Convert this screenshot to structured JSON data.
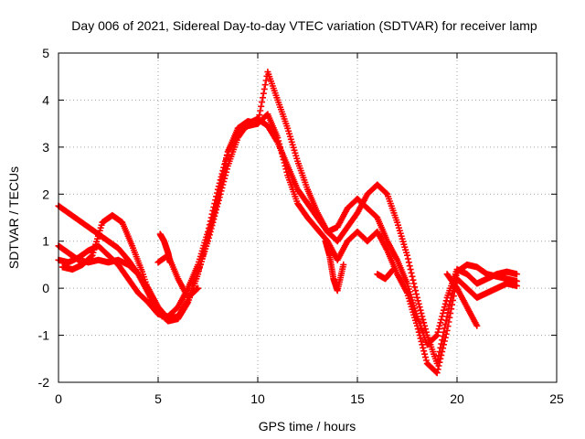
{
  "chart_data": {
    "type": "scatter",
    "title": "Day 006 of 2021, Sidereal Day-to-day VTEC variation (SDTVAR) for receiver lamp",
    "xlabel": "GPS time / hours",
    "ylabel": "SDTVAR / TECUs",
    "xlim": [
      0,
      25
    ],
    "ylim": [
      -2,
      5
    ],
    "xticks": [
      "0",
      "5",
      "10",
      "15",
      "20",
      "25"
    ],
    "yticks": [
      "-2",
      "-1",
      "0",
      "1",
      "2",
      "3",
      "4",
      "5"
    ],
    "grid": true,
    "marker": "+",
    "color": "#ff0000",
    "series": [
      {
        "x": [
          0,
          0.5,
          1.0,
          1.5,
          2.0,
          2.5,
          3.0,
          3.5,
          4.0,
          4.5,
          5.0,
          5.5,
          6.0,
          6.5,
          7.0,
          7.5,
          8.0,
          8.5,
          9.0,
          9.5,
          10.0,
          10.5,
          11.0,
          11.5,
          12.0,
          12.5,
          13.0,
          13.5,
          14.0,
          14.5,
          15.0,
          15.5,
          16.0,
          16.5,
          17.0,
          17.5,
          18.0,
          18.5,
          19.0,
          19.5,
          20.0,
          20.5,
          21.0,
          21.5,
          22.0,
          22.5,
          23.0
        ],
        "y": [
          1.75,
          1.6,
          1.45,
          1.3,
          1.15,
          1.0,
          0.85,
          0.6,
          0.3,
          0.0,
          -0.4,
          -0.65,
          -0.6,
          -0.25,
          0.35,
          1.0,
          1.8,
          2.6,
          3.2,
          3.5,
          3.6,
          3.45,
          3.1,
          2.6,
          2.1,
          1.8,
          1.5,
          1.2,
          1.3,
          1.7,
          1.9,
          1.7,
          1.5,
          1.0,
          0.6,
          0.1,
          -0.6,
          -1.2,
          -1.0,
          -0.2,
          0.4,
          0.3,
          0.1,
          0.2,
          0.3,
          0.35,
          0.3
        ]
      },
      {
        "x": [
          0,
          0.5,
          1.0,
          1.5,
          2.0,
          2.5,
          3.0,
          3.5,
          4.0,
          4.5,
          5.0,
          5.5,
          6.0,
          6.5,
          7.0,
          7.5,
          8.0,
          8.5,
          9.0,
          9.5,
          10.0,
          10.5,
          11.0,
          11.5,
          12.0,
          12.5,
          13.0,
          13.5,
          14.0,
          14.5,
          15.0,
          15.5,
          16.0,
          16.5,
          17.0,
          17.5,
          18.0,
          18.5,
          19.0,
          19.5,
          20.0,
          20.5,
          21.0,
          21.5,
          22.0,
          22.5,
          23.0
        ],
        "y": [
          0.9,
          0.75,
          0.6,
          0.55,
          0.6,
          0.55,
          0.6,
          0.5,
          0.3,
          -0.1,
          -0.5,
          -0.7,
          -0.65,
          -0.3,
          0.3,
          1.1,
          1.9,
          2.9,
          3.4,
          3.55,
          3.5,
          4.6,
          4.0,
          3.4,
          2.7,
          2.1,
          1.6,
          1.2,
          1.0,
          1.3,
          1.6,
          2.0,
          2.2,
          2.0,
          1.4,
          0.7,
          -0.2,
          -1.0,
          -1.6,
          -0.6,
          0.35,
          0.5,
          0.45,
          0.3,
          0.25,
          0.2,
          0.15
        ]
      },
      {
        "x": [
          0,
          0.5,
          1.0,
          1.5,
          2.0,
          2.5,
          3.0,
          3.5,
          4.0,
          4.5,
          5.0,
          5.5,
          6.0,
          6.5,
          7.0,
          7.5,
          8.0,
          8.5,
          9.0,
          9.5,
          10.0,
          10.5,
          11.0,
          11.5,
          12.0,
          12.5,
          13.0,
          13.5,
          14.0,
          14.5,
          15.0,
          15.5,
          16.0,
          16.5,
          17.0,
          17.5,
          18.0,
          18.5,
          19.0,
          19.5,
          20.0,
          20.5,
          21.0,
          21.5,
          22.0,
          22.5,
          23.0
        ],
        "y": [
          0.6,
          0.55,
          0.65,
          0.8,
          0.9,
          0.7,
          0.5,
          0.2,
          -0.1,
          -0.3,
          -0.55,
          -0.6,
          -0.4,
          0.0,
          0.5,
          1.2,
          2.1,
          2.9,
          3.3,
          3.45,
          3.5,
          3.7,
          3.2,
          2.4,
          1.8,
          1.5,
          1.25,
          1.0,
          0.6,
          1.0,
          1.2,
          1.0,
          1.2,
          0.8,
          0.3,
          -0.1,
          -0.8,
          -1.6,
          -1.8,
          -0.9,
          0.2,
          0.0,
          -0.2,
          -0.1,
          0.0,
          0.1,
          0.05
        ]
      },
      {
        "x": [
          0.2,
          0.7,
          1.2,
          1.7,
          2.2,
          2.7,
          3.2,
          3.7,
          4.2,
          4.7,
          5.2
        ],
        "y": [
          0.45,
          0.4,
          0.5,
          0.7,
          1.4,
          1.55,
          1.4,
          0.9,
          0.35,
          -0.3,
          -0.6
        ]
      },
      {
        "x": [
          5.0,
          5.5,
          6.0,
          6.5,
          7.0
        ],
        "y": [
          0.55,
          0.7,
          0.2,
          -0.2,
          0.0
        ]
      },
      {
        "x": [
          13.4,
          13.6,
          13.8,
          14.0,
          14.3
        ],
        "y": [
          1.0,
          0.7,
          0.2,
          -0.05,
          0.5
        ]
      },
      {
        "x": [
          16.0,
          16.4,
          16.8
        ],
        "y": [
          0.3,
          0.2,
          0.4
        ]
      },
      {
        "x": [
          19.5,
          20.0,
          20.5,
          21.0
        ],
        "y": [
          0.3,
          0.0,
          -0.4,
          -0.8
        ]
      },
      {
        "x": [
          5.1,
          5.3,
          5.5,
          5.6
        ],
        "y": [
          1.15,
          1.0,
          0.75,
          0.55
        ]
      }
    ]
  }
}
